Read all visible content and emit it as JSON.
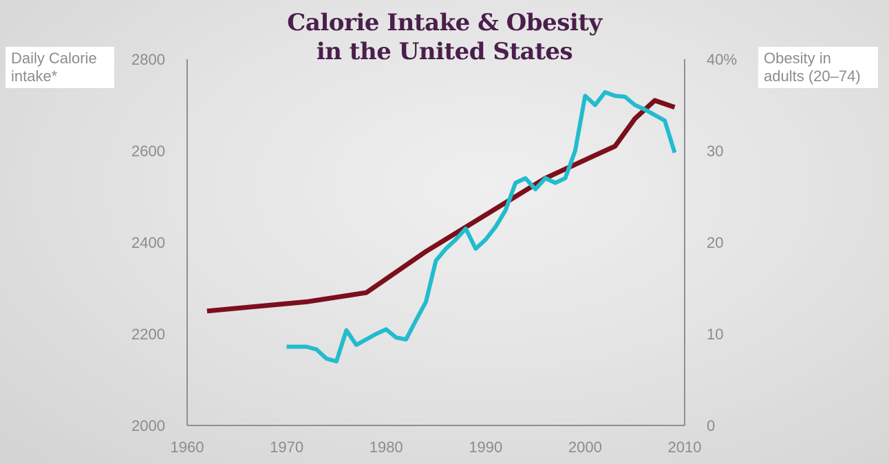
{
  "chart_data": {
    "type": "line",
    "title_line1": "Calorie Intake & Obesity",
    "title_line2": "in the United States",
    "left_axis_label_line1": "Daily Calorie",
    "left_axis_label_line2": "intake*",
    "right_axis_label_line1": "Obesity in",
    "right_axis_label_line2": "adults (20–74)",
    "x_ticks": [
      "1960",
      "1970",
      "1980",
      "1990",
      "2000",
      "2010"
    ],
    "y_left_ticks": [
      "2000",
      "2200",
      "2400",
      "2600",
      "2800"
    ],
    "y_right_ticks": [
      "0",
      "10",
      "20",
      "30",
      "40%"
    ],
    "xlim": [
      1960,
      2010
    ],
    "y_left_lim": [
      2000,
      2800
    ],
    "y_right_lim": [
      0,
      40
    ],
    "grid": false,
    "series": [
      {
        "axis": "left",
        "color": "#7b0f1c",
        "x": [
          1962,
          1972,
          1978,
          1984,
          1990,
          1996,
          2001,
          2003,
          2005,
          2007,
          2009
        ],
        "values": [
          2250,
          2270,
          2290,
          2380,
          2460,
          2540,
          2590,
          2610,
          2670,
          2710,
          2695
        ]
      },
      {
        "axis": "right",
        "color": "#22bccd",
        "x": [
          1970,
          1972,
          1973,
          1974,
          1975,
          1976,
          1977,
          1978,
          1979,
          1980,
          1981,
          1982,
          1983,
          1984,
          1985,
          1986,
          1987,
          1988,
          1989,
          1990,
          1991,
          1992,
          1993,
          1994,
          1995,
          1996,
          1997,
          1998,
          1999,
          2000,
          2001,
          2002,
          2003,
          2004,
          2005,
          2006,
          2007,
          2008,
          2009
        ],
        "values": [
          8.6,
          8.6,
          8.3,
          7.3,
          7.0,
          10.4,
          8.8,
          9.4,
          10.0,
          10.5,
          9.6,
          9.4,
          11.5,
          13.5,
          18.0,
          19.3,
          20.3,
          21.5,
          19.3,
          20.3,
          21.7,
          23.5,
          26.5,
          27.0,
          25.8,
          27.0,
          26.5,
          27.0,
          30.0,
          36.0,
          35.0,
          36.4,
          36.0,
          35.9,
          35.0,
          34.5,
          33.9,
          33.3,
          29.8
        ]
      }
    ]
  }
}
